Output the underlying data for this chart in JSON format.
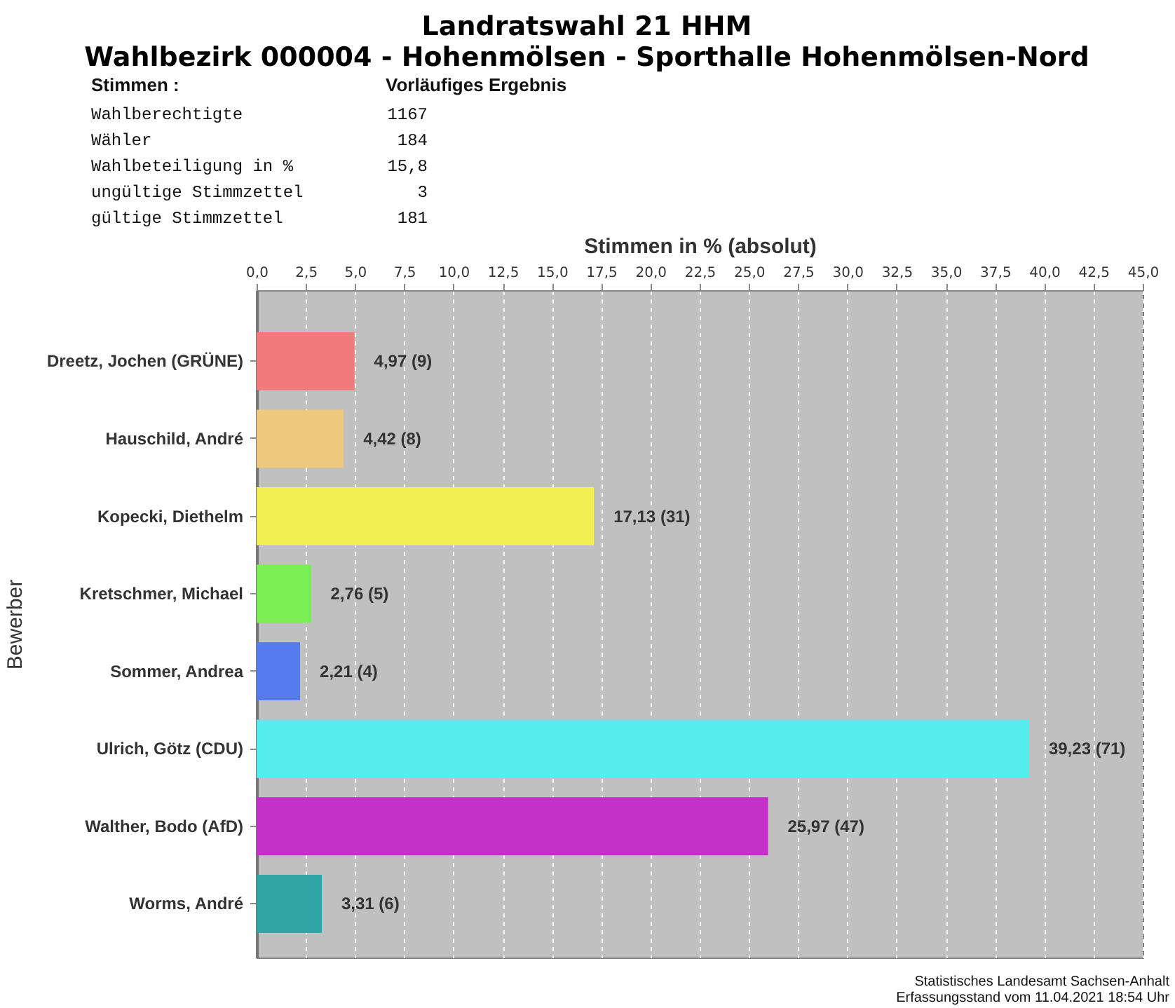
{
  "chart_data": {
    "type": "bar",
    "orientation": "horizontal",
    "title": "Landratswahl 21 HHM",
    "subtitle": "Wahlbezirk 000004 - Hohenmölsen - Sporthalle Hohenmölsen-Nord",
    "xlabel": "Stimmen in % (absolut)",
    "ylabel": "Bewerber",
    "categories": [
      "Dreetz, Jochen (GRÜNE)",
      "Hauschild, André",
      "Kopecki, Diethelm",
      "Kretschmer, Michael",
      "Sommer, Andrea",
      "Ulrich, Götz (CDU)",
      "Walther, Bodo (AfD)",
      "Worms, André"
    ],
    "values": [
      4.97,
      4.42,
      17.13,
      2.76,
      2.21,
      39.23,
      25.97,
      3.31
    ],
    "colors": [
      "#ef7b7b",
      "#eec97d",
      "#f0f055",
      "#7aee55",
      "#557bee",
      "#55eeee",
      "#c430c8",
      "#2ea5a5"
    ],
    "value_labels": [
      "4,97 (9)",
      "4,42 (8)",
      "17,13 (31)",
      "2,76 (5)",
      "2,21 (4)",
      "39,23 (71)",
      "25,97 (47)",
      "3,31 (6)"
    ],
    "xlim": [
      0,
      45
    ],
    "xticks": [
      {
        "value": 0,
        "label": "0,0"
      },
      {
        "value": 2.5,
        "label": "2,5"
      },
      {
        "value": 5,
        "label": "5,0"
      },
      {
        "value": 7.5,
        "label": "7,5"
      },
      {
        "value": 10,
        "label": "10,0"
      },
      {
        "value": 12.5,
        "label": "12,5"
      },
      {
        "value": 15,
        "label": "15,0"
      },
      {
        "value": 17.5,
        "label": "17,5"
      },
      {
        "value": 20,
        "label": "20,0"
      },
      {
        "value": 22.5,
        "label": "22,5"
      },
      {
        "value": 25,
        "label": "25,0"
      },
      {
        "value": 27.5,
        "label": "27,5"
      },
      {
        "value": 30,
        "label": "30,0"
      },
      {
        "value": 32.5,
        "label": "32,5"
      },
      {
        "value": 35,
        "label": "35,0"
      },
      {
        "value": 37.5,
        "label": "37,5"
      },
      {
        "value": 40,
        "label": "40,0"
      },
      {
        "value": 42.5,
        "label": "42,5"
      },
      {
        "value": 45,
        "label": "45,0"
      }
    ],
    "grid": "x",
    "annotations": [
      "Stimmen :",
      "Vorläufiges Ergebnis",
      "Wahlberechtigte",
      "1167",
      "Wähler",
      "184",
      "Wahlbeteiligung in %",
      "15,8",
      "ungültige Stimmzettel",
      "3",
      "gültige Stimmzettel",
      "181",
      "Statistisches Landesamt Sachsen-Anhalt",
      "Erfassungsstand vom 11.04.2021 18:54 Uhr"
    ]
  }
}
